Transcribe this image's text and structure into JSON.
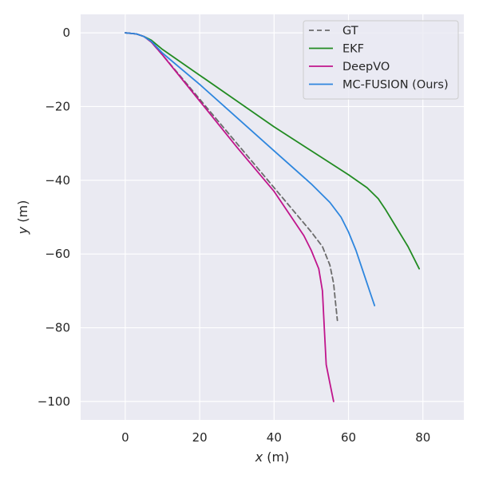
{
  "chart_data": {
    "type": "line",
    "title": "",
    "xlabel": {
      "var": "x",
      "unit": " (m)"
    },
    "ylabel": {
      "var": "y",
      "unit": " (m)"
    },
    "xlim": [
      -12,
      91
    ],
    "ylim": [
      -105,
      5
    ],
    "xticks": [
      0,
      20,
      40,
      60,
      80
    ],
    "yticks": [
      0,
      -20,
      -40,
      -60,
      -80,
      -100
    ],
    "xtick_labels": [
      "0",
      "20",
      "40",
      "60",
      "80"
    ],
    "ytick_labels": [
      "0",
      "−20",
      "−40",
      "−60",
      "−80",
      "−100"
    ],
    "grid": true,
    "background": "#eaeaf2",
    "legend_position": "upper-right",
    "series": [
      {
        "name": "GT",
        "color": "#6b6b6b",
        "style": "dashed",
        "points": [
          [
            0,
            0
          ],
          [
            3,
            -0.3
          ],
          [
            5,
            -1
          ],
          [
            7,
            -2.5
          ],
          [
            10,
            -6
          ],
          [
            15,
            -12
          ],
          [
            20,
            -18
          ],
          [
            25,
            -24
          ],
          [
            30,
            -30
          ],
          [
            35,
            -36
          ],
          [
            40,
            -42
          ],
          [
            45,
            -48
          ],
          [
            50,
            -54
          ],
          [
            53,
            -58
          ],
          [
            55,
            -63
          ],
          [
            56,
            -68
          ],
          [
            56.5,
            -73
          ],
          [
            57,
            -78
          ]
        ]
      },
      {
        "name": "EKF",
        "color": "#228b22",
        "style": "solid",
        "points": [
          [
            0,
            0
          ],
          [
            3,
            -0.3
          ],
          [
            5,
            -1
          ],
          [
            7,
            -2
          ],
          [
            10,
            -4.5
          ],
          [
            20,
            -11.5
          ],
          [
            30,
            -18.5
          ],
          [
            40,
            -25.5
          ],
          [
            50,
            -32
          ],
          [
            60,
            -38.5
          ],
          [
            65,
            -42
          ],
          [
            68,
            -45
          ],
          [
            70,
            -48
          ],
          [
            73,
            -53
          ],
          [
            76,
            -58
          ],
          [
            79,
            -64
          ]
        ]
      },
      {
        "name": "DeepVO",
        "color": "#c0158c",
        "style": "solid",
        "points": [
          [
            0,
            0
          ],
          [
            3,
            -0.3
          ],
          [
            5,
            -1
          ],
          [
            7,
            -2.5
          ],
          [
            10,
            -6
          ],
          [
            20,
            -18.5
          ],
          [
            30,
            -31
          ],
          [
            40,
            -43
          ],
          [
            48,
            -55
          ],
          [
            50,
            -59
          ],
          [
            52,
            -64
          ],
          [
            53,
            -70
          ],
          [
            53.5,
            -80
          ],
          [
            54,
            -90
          ],
          [
            55,
            -95
          ],
          [
            56,
            -100
          ]
        ]
      },
      {
        "name": "MC-FUSION (Ours)",
        "color": "#2e86de",
        "style": "solid",
        "points": [
          [
            0,
            0
          ],
          [
            3,
            -0.3
          ],
          [
            5,
            -1
          ],
          [
            7,
            -2.3
          ],
          [
            10,
            -5.5
          ],
          [
            20,
            -14
          ],
          [
            30,
            -23
          ],
          [
            40,
            -32
          ],
          [
            50,
            -41
          ],
          [
            55,
            -46
          ],
          [
            58,
            -50
          ],
          [
            60,
            -54
          ],
          [
            62,
            -59
          ],
          [
            64,
            -65
          ],
          [
            66,
            -71
          ],
          [
            67,
            -74
          ]
        ]
      }
    ]
  }
}
